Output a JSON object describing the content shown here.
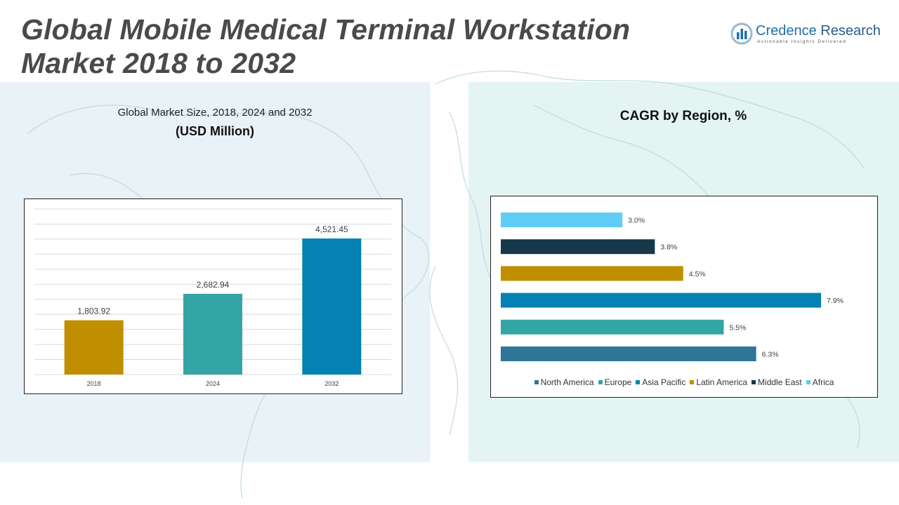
{
  "header": {
    "title_line1": "Global Mobile Medical Terminal Workstation",
    "title_line2": "Market 2018 to 2032"
  },
  "logo": {
    "name_part1": "Credence",
    "name_part2": " Research",
    "tagline": "Actionable Insights Delivered",
    "colors": {
      "primary": "#1e6fa8",
      "accent": "#9ab9d2"
    }
  },
  "left_panel": {
    "heading": "Global Market Size, 2018, 2024 and 2032",
    "subheading": "(USD Million)"
  },
  "right_panel": {
    "heading": "CAGR by Region, %"
  },
  "chart_data": [
    {
      "type": "bar",
      "title": "Global Market Size, 2018, 2024 and 2032",
      "ylabel": "(USD Million)",
      "categories": [
        "2018",
        "2024",
        "2032"
      ],
      "values": [
        1803.92,
        2682.94,
        4521.45
      ],
      "value_labels": [
        "1,803.92",
        "2,682.94",
        "4,521.45"
      ],
      "colors": [
        "#bf8f00",
        "#33a5a5",
        "#0582b3"
      ],
      "ylim": [
        0,
        5500
      ],
      "grid": true
    },
    {
      "type": "bar",
      "orientation": "horizontal",
      "title": "CAGR by Region, %",
      "categories": [
        "North America",
        "Europe",
        "Asia Pacific",
        "Latin America",
        "Middle East",
        "Africa"
      ],
      "values": [
        6.3,
        5.5,
        7.9,
        4.5,
        3.8,
        3.0
      ],
      "value_labels": [
        "6.3%",
        "5.5%",
        "7.9%",
        "4.5%",
        "3.8%",
        "3.0%"
      ],
      "colors": [
        "#2e7597",
        "#33a5a5",
        "#0582b3",
        "#bf8f00",
        "#17374a",
        "#5fcdf5"
      ],
      "xlim": [
        0,
        7.9
      ],
      "legend": "bottom",
      "grid": false
    }
  ]
}
